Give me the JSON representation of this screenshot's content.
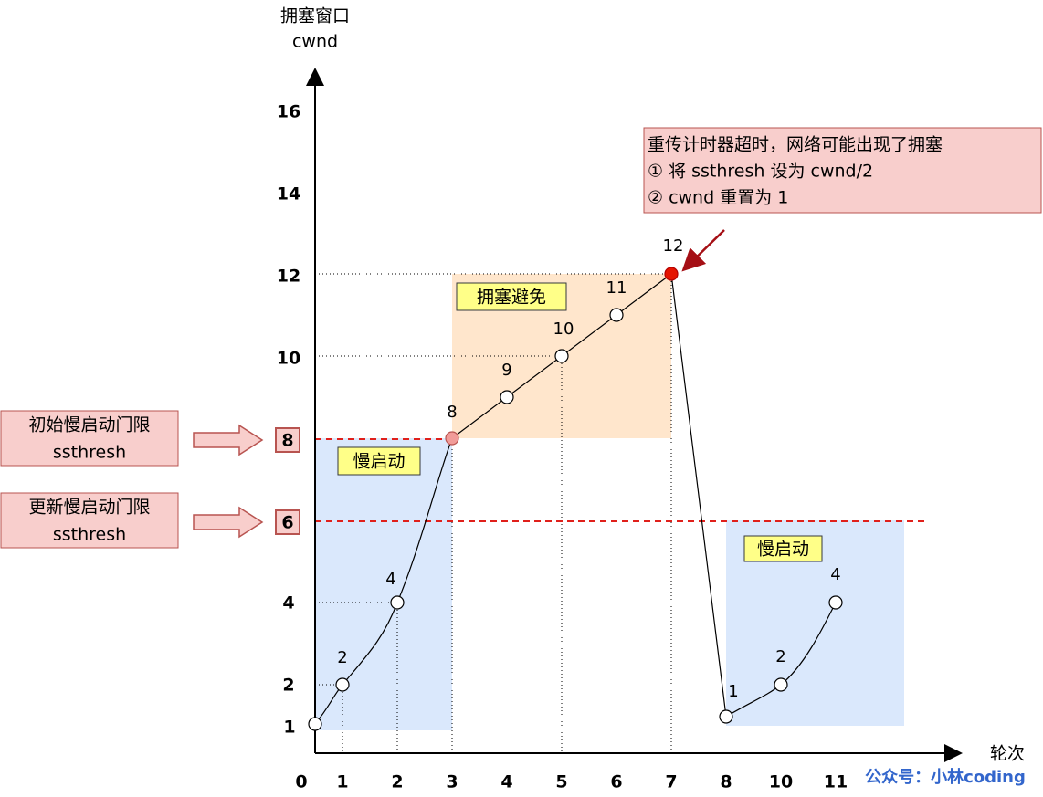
{
  "y_axis": {
    "title": "拥塞窗口",
    "unit": "cwnd",
    "ticks": [
      "16",
      "14",
      "12",
      "10",
      "8",
      "6",
      "4",
      "2",
      "1"
    ]
  },
  "x_axis": {
    "title": "轮次",
    "ticks": [
      "0",
      "1",
      "2",
      "3",
      "4",
      "5",
      "6",
      "7",
      "8",
      "10",
      "11"
    ]
  },
  "points": [
    "1",
    "2",
    "4",
    "8",
    "9",
    "10",
    "11",
    "12",
    "1",
    "2",
    "4"
  ],
  "phases": [
    "拥塞避免",
    "慢启动",
    "慢启动"
  ],
  "callouts": [
    {
      "lines": [
        "初始慢启动门限",
        "ssthresh"
      ]
    },
    {
      "lines": [
        "更新慢启动门限",
        "ssthresh"
      ]
    }
  ],
  "annotation": {
    "lines": [
      "重传计时器超时，网络可能出现了拥塞",
      "① 将 ssthresh 设为 cwnd/2",
      "② cwnd 重置为 1"
    ]
  },
  "watermark": "公众号：小林coding"
}
